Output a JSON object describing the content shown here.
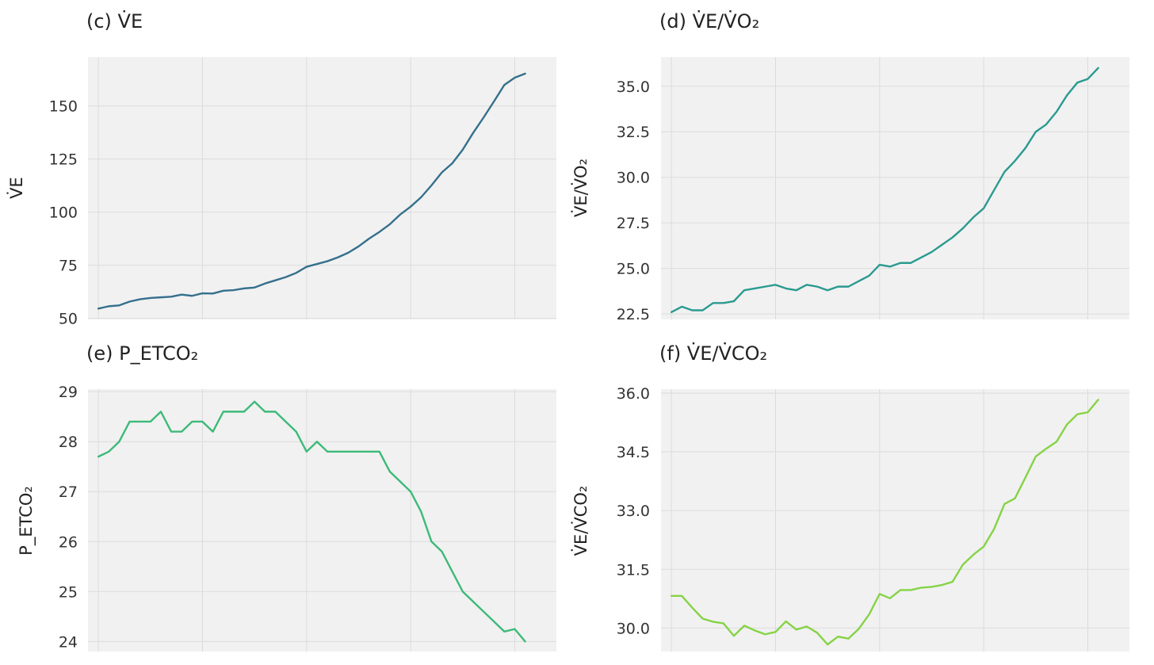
{
  "chart_data": [
    {
      "type": "line",
      "title": "(c) V̇E",
      "ylabel": "V̇E",
      "xlim": [
        -1,
        44
      ],
      "xgrid": [
        0,
        10,
        20,
        30,
        40
      ],
      "ylim": [
        49.5,
        173
      ],
      "yticks": [
        50,
        75,
        100,
        125,
        150
      ],
      "ytick_labels": [
        "50",
        "75",
        "100",
        "125",
        "150"
      ],
      "color": "#35708c",
      "values": [
        54.6,
        55.7,
        56.1,
        57.9,
        59.0,
        59.6,
        59.9,
        60.2,
        61.2,
        60.6,
        61.8,
        61.7,
        63.0,
        63.3,
        64.1,
        64.5,
        66.4,
        67.9,
        69.4,
        71.4,
        74.3,
        75.6,
        76.9,
        78.7,
        80.9,
        83.9,
        87.5,
        90.7,
        94.3,
        98.9,
        102.6,
        107.0,
        112.6,
        118.7,
        123.0,
        129.4,
        137.3,
        144.5,
        152.1,
        159.9,
        163.3,
        165.2
      ]
    },
    {
      "type": "line",
      "title": "(d) V̇E/V̇O₂",
      "ylabel": "V̇E/V̇O₂",
      "xlim": [
        -1,
        44
      ],
      "xgrid": [
        0,
        10,
        20,
        30,
        40
      ],
      "ylim": [
        22.2,
        36.6
      ],
      "yticks": [
        22.5,
        25.0,
        27.5,
        30.0,
        32.5,
        35.0
      ],
      "ytick_labels": [
        "22.5",
        "25.0",
        "27.5",
        "30.0",
        "32.5",
        "35.0"
      ],
      "color": "#2a9a8f",
      "values": [
        22.6,
        22.9,
        22.7,
        22.7,
        23.1,
        23.1,
        23.2,
        23.8,
        23.9,
        24.0,
        24.1,
        23.9,
        23.8,
        24.1,
        24.0,
        23.8,
        24.0,
        24.0,
        24.3,
        24.6,
        25.2,
        25.1,
        25.3,
        25.3,
        25.6,
        25.9,
        26.3,
        26.7,
        27.2,
        27.8,
        28.3,
        29.3,
        30.3,
        30.9,
        31.6,
        32.5,
        32.9,
        33.6,
        34.5,
        35.2,
        35.4,
        36.0
      ]
    },
    {
      "type": "line",
      "title": "(e) P_ETCO₂",
      "ylabel": "P_ETCO₂",
      "xlim": [
        -1,
        44
      ],
      "xgrid": [
        0,
        10,
        20,
        30,
        40
      ],
      "ylim": [
        23.8,
        29.05
      ],
      "yticks": [
        24,
        25,
        26,
        27,
        28,
        29
      ],
      "ytick_labels": [
        "24",
        "25",
        "26",
        "27",
        "28",
        "29"
      ],
      "color": "#3cba78",
      "values": [
        27.7,
        27.8,
        28.0,
        28.4,
        28.4,
        28.4,
        28.6,
        28.2,
        28.2,
        28.4,
        28.4,
        28.2,
        28.6,
        28.6,
        28.6,
        28.8,
        28.6,
        28.6,
        28.4,
        28.2,
        27.8,
        28.0,
        27.8,
        27.8,
        27.8,
        27.8,
        27.8,
        27.8,
        27.4,
        27.2,
        27.0,
        26.6,
        26.0,
        25.8,
        25.4,
        25.0,
        24.8,
        24.6,
        24.4,
        24.2,
        24.25,
        24.0
      ]
    },
    {
      "type": "line",
      "title": "(f) V̇E/V̇CO₂",
      "ylabel": "V̇E/V̇CO₂",
      "xlim": [
        -1,
        44
      ],
      "xgrid": [
        0,
        10,
        20,
        30,
        40
      ],
      "ylim": [
        29.4,
        36.1
      ],
      "yticks": [
        30.0,
        31.5,
        33.0,
        34.5,
        36.0
      ],
      "ytick_labels": [
        "30.0",
        "31.5",
        "33.0",
        "34.5",
        "36.0"
      ],
      "color": "#86d346",
      "values": [
        30.82,
        30.82,
        30.52,
        30.24,
        30.16,
        30.12,
        29.8,
        30.06,
        29.94,
        29.84,
        29.9,
        30.17,
        29.96,
        30.04,
        29.88,
        29.58,
        29.78,
        29.73,
        29.98,
        30.35,
        30.87,
        30.76,
        30.97,
        30.97,
        31.03,
        31.05,
        31.1,
        31.18,
        31.62,
        31.87,
        32.08,
        32.53,
        33.17,
        33.31,
        33.84,
        34.38,
        34.58,
        34.76,
        35.2,
        35.46,
        35.51,
        35.83
      ]
    }
  ]
}
